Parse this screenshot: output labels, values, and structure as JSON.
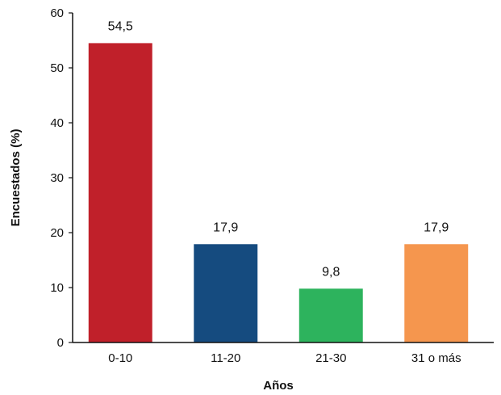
{
  "chart_data": {
    "type": "bar",
    "categories": [
      "0-10",
      "11-20",
      "21-30",
      "31 o más"
    ],
    "values": [
      54.5,
      17.9,
      9.8,
      17.9
    ],
    "value_labels": [
      "54,5",
      "17,9",
      "9,8",
      "17,9"
    ],
    "colors": [
      "#c0202a",
      "#154b7f",
      "#2db35d",
      "#f5964e"
    ],
    "xlabel": "Años",
    "ylabel": "Encuestados (%)",
    "ylim": [
      0,
      60
    ],
    "yticks": [
      0,
      10,
      20,
      30,
      40,
      50,
      60
    ],
    "grid": false,
    "legend": "none"
  }
}
